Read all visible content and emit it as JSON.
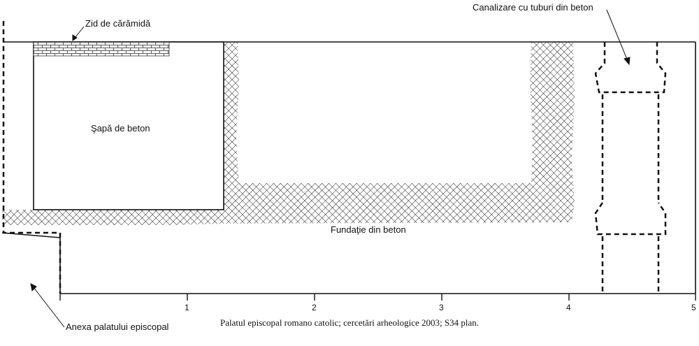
{
  "labels": {
    "brick_wall": "Zid de cărămidă",
    "pipes": "Canalizare cu tuburi din beton",
    "screed": "Şapă de beton",
    "foundation": "Fundaţie din beton",
    "annex": "Anexa palatului episcopal"
  },
  "scale": {
    "ticks": [
      "1",
      "2",
      "3",
      "4",
      "5"
    ]
  },
  "caption": "Palatul episcopal romano catolic; cercetări arheologice 2003; S34 plan."
}
